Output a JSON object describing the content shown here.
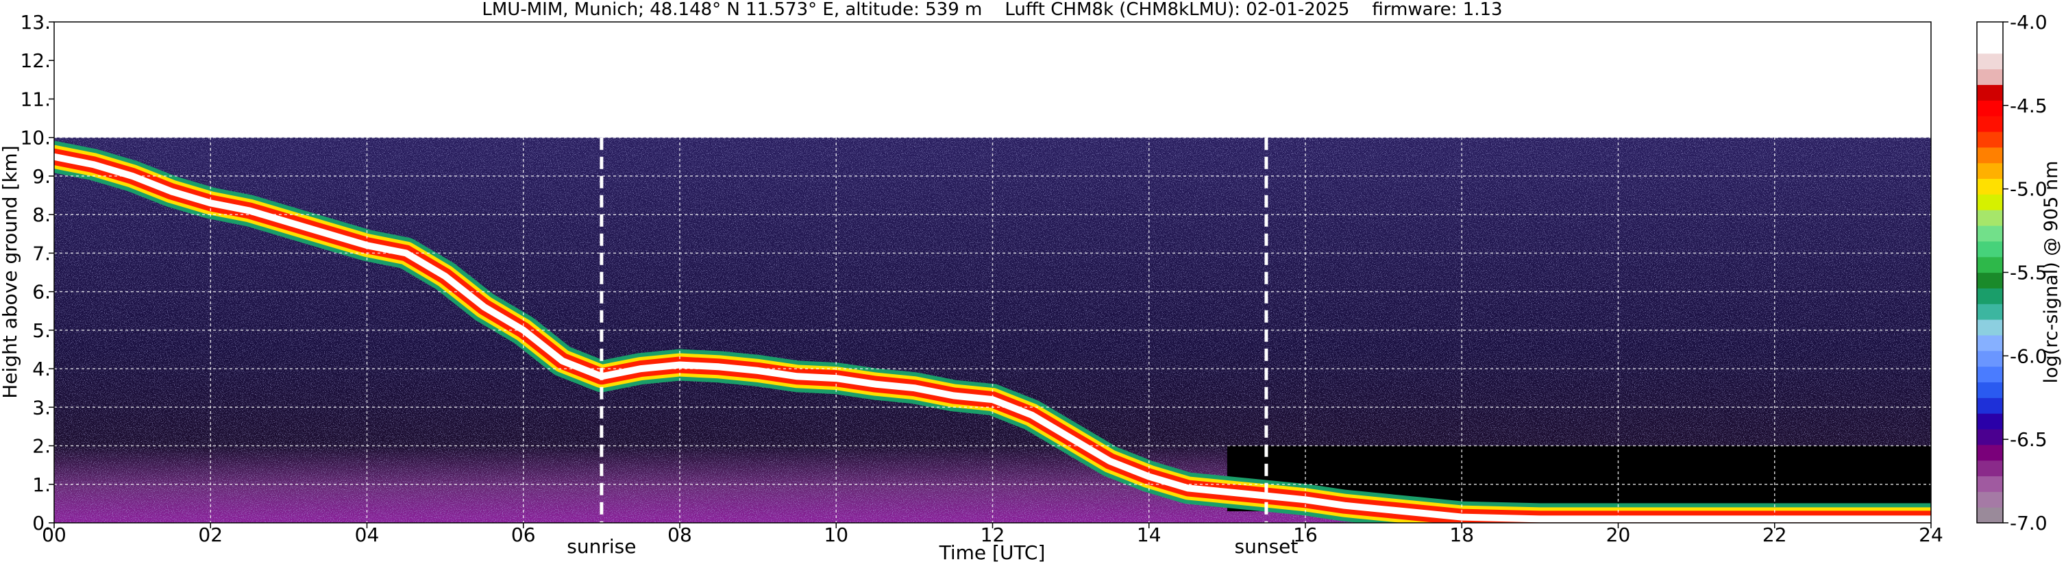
{
  "chart_data": [
    {
      "type": "heatmap",
      "title": "LMU-MIM, Munich; 48.148° N 11.573° E, altitude: 539 m    Lufft CHM8k (CHM8kLMU): 02-01-2025    firmware: 1.13",
      "xlabel": "Time [UTC]",
      "ylabel": "Height above ground [km]",
      "xlim": [
        0,
        24
      ],
      "ylim": [
        0,
        13
      ],
      "x_ticks": [
        0,
        2,
        4,
        6,
        8,
        10,
        12,
        14,
        16,
        18,
        20,
        22,
        24
      ],
      "x_tick_labels": [
        "00",
        "02",
        "04",
        "06",
        "08",
        "10",
        "12",
        "14",
        "16",
        "18",
        "20",
        "22",
        "24"
      ],
      "y_ticks": [
        0,
        1,
        2,
        3,
        4,
        5,
        6,
        7,
        8,
        9,
        10,
        11,
        12,
        13
      ],
      "y_tick_labels": [
        "0.",
        "1.",
        "2.",
        "3.",
        "4.",
        "5.",
        "6.",
        "7.",
        "8.",
        "9.",
        "10.",
        "11.",
        "12.",
        "13."
      ],
      "grid": true,
      "data_top_km": 10,
      "annotations": [
        {
          "text": "sunrise",
          "x": 7.0
        },
        {
          "text": "sunset",
          "x": 15.5
        }
      ],
      "cloud_layer_height_km": {
        "time_utc": [
          0,
          0.5,
          1,
          1.5,
          2,
          2.5,
          3,
          3.5,
          4,
          4.5,
          5,
          5.5,
          6,
          6.5,
          7,
          7.5,
          8,
          8.5,
          9,
          9.5,
          10,
          10.5,
          11,
          11.5,
          12,
          12.5,
          13,
          13.5,
          14,
          14.5,
          15,
          15.5,
          16,
          16.5,
          17,
          17.5,
          18,
          19,
          20,
          21,
          22,
          23,
          24
        ],
        "height_km": [
          9.5,
          9.3,
          9.0,
          8.6,
          8.3,
          8.1,
          7.8,
          7.5,
          7.2,
          7.0,
          6.4,
          5.6,
          5.0,
          4.2,
          3.8,
          4.0,
          4.1,
          4.05,
          3.95,
          3.8,
          3.75,
          3.6,
          3.5,
          3.3,
          3.2,
          2.8,
          2.2,
          1.6,
          1.2,
          0.9,
          0.8,
          0.7,
          0.6,
          0.45,
          0.35,
          0.25,
          0.15,
          0.1,
          0.1,
          0.1,
          0.1,
          0.1,
          0.1
        ]
      },
      "colorbar": {
        "label": "log(rc-signal) @ 905 nm",
        "range": [
          -7.0,
          -4.0
        ],
        "ticks": [
          -7.0,
          -6.5,
          -6.0,
          -5.5,
          -5.0,
          -4.5,
          -4.0
        ],
        "tick_labels": [
          "-7.0",
          "-6.5",
          "-6.0",
          "-5.5",
          "-5.0",
          "-4.5",
          "-4.0"
        ],
        "colors_low_to_high": [
          "#9a8a9a",
          "#a57aa5",
          "#a05aa0",
          "#8a2a8a",
          "#7a007a",
          "#4b0090",
          "#2a00a8",
          "#1e30d8",
          "#2a5af0",
          "#4a7cff",
          "#6a96ff",
          "#86b0ff",
          "#8ccfe0",
          "#3cb6a0",
          "#1a9e6a",
          "#1a8a2a",
          "#2eb84a",
          "#46d27a",
          "#72e08a",
          "#a6e66a",
          "#d6f000",
          "#ffe000",
          "#ffb000",
          "#ff8000",
          "#ff4000",
          "#ff1000",
          "#ff0000",
          "#d00000",
          "#e8b4b4",
          "#f0d8d8",
          "#ffffff",
          "#ffffff"
        ]
      }
    }
  ]
}
